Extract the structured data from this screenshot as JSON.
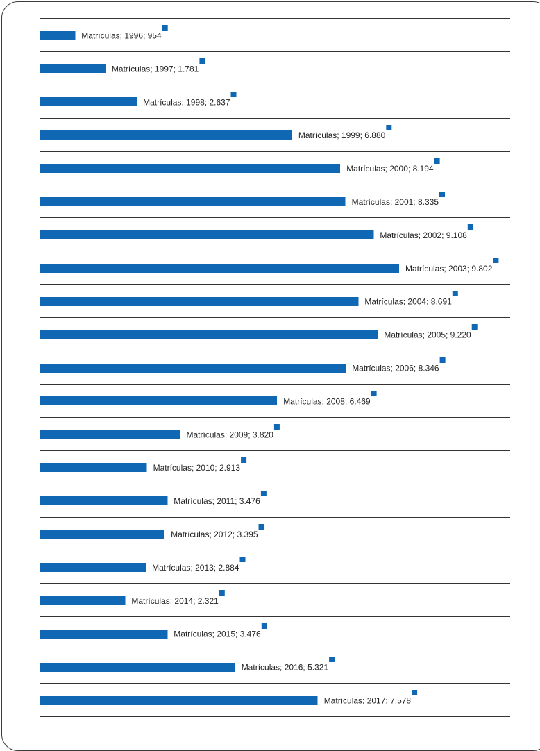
{
  "chart_data": {
    "type": "bar",
    "orientation": "horizontal",
    "series_name": "Matrículas",
    "categories": [
      "1996",
      "1997",
      "1998",
      "1999",
      "2000",
      "2001",
      "2002",
      "2003",
      "2004",
      "2005",
      "2006",
      "2008",
      "2009",
      "2010",
      "2011",
      "2012",
      "2013",
      "2014",
      "2015",
      "2016",
      "2017"
    ],
    "values": [
      954,
      1781,
      2637,
      6880,
      8194,
      8335,
      9108,
      9802,
      8691,
      9220,
      8346,
      6469,
      3820,
      2913,
      3476,
      3395,
      2884,
      2321,
      3476,
      5321,
      7578
    ],
    "data_labels": [
      "Matrículas; 1996; 954",
      "Matrículas; 1997; 1.781",
      "Matrículas; 1998; 2.637",
      "Matrículas; 1999; 6.880",
      "Matrículas; 2000; 8.194",
      "Matrículas; 2001; 8.335",
      "Matrículas; 2002; 9.108",
      "Matrículas; 2003; 9.802",
      "Matrículas; 2004; 8.691",
      "Matrículas; 2005; 9.220",
      "Matrículas; 2006; 8.346",
      "Matrículas; 2008; 6.469",
      "Matrículas; 2009; 3.820",
      "Matrículas; 2010; 2.913",
      "Matrículas; 2011; 3.476",
      "Matrículas; 2012; 3.395",
      "Matrículas; 2013; 2.884",
      "Matrículas; 2014; 2.321",
      "Matrículas; 2015; 3.476",
      "Matrículas; 2016; 5.321",
      "Matrículas; 2017; 7.578"
    ],
    "title": "",
    "xlabel": "",
    "ylabel": "",
    "xlim": [
      0,
      9802
    ],
    "grid": false,
    "legend": "none",
    "colors": {
      "bar": "#1068b4",
      "marker": "#1068b4",
      "separator": "#333333",
      "frame": "#3a3a3a"
    }
  }
}
